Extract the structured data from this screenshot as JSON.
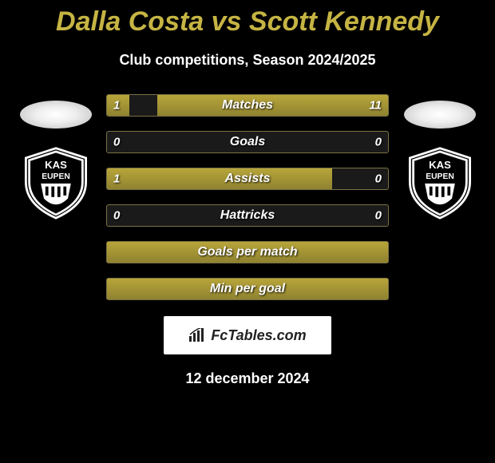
{
  "title": "Dalla Costa vs Scott Kennedy",
  "subtitle": "Club competitions, Season 2024/2025",
  "date": "12 december 2024",
  "branding": "FcTables.com",
  "colors": {
    "accent": "#b8a63a",
    "title_color": "#c5b443",
    "background": "#000000",
    "bar_border": "#7a7144",
    "text": "#ffffff"
  },
  "club_logo_text": "KAS EUPEN",
  "stats": [
    {
      "label": "Matches",
      "left_value": "1",
      "right_value": "11",
      "left_pct": 8,
      "right_pct": 82
    },
    {
      "label": "Goals",
      "left_value": "0",
      "right_value": "0",
      "left_pct": 0,
      "right_pct": 0
    },
    {
      "label": "Assists",
      "left_value": "1",
      "right_value": "0",
      "left_pct": 80,
      "right_pct": 0
    },
    {
      "label": "Hattricks",
      "left_value": "0",
      "right_value": "0",
      "left_pct": 0,
      "right_pct": 0
    },
    {
      "label": "Goals per match",
      "left_value": "",
      "right_value": "",
      "full": true
    },
    {
      "label": "Min per goal",
      "left_value": "",
      "right_value": "",
      "full": true
    }
  ]
}
